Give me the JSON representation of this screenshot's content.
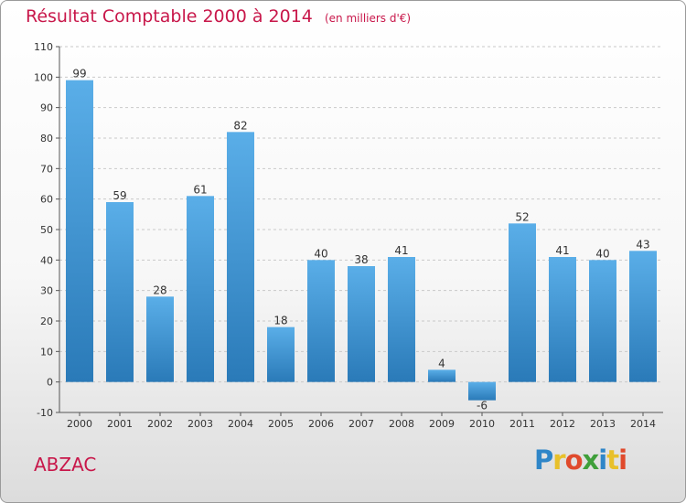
{
  "header": {
    "title": "Résultat Comptable 2000 à 2014",
    "subtitle": "(en milliers d'€)"
  },
  "commune": "ABZAC",
  "logo": {
    "text": "Proxiti",
    "letters": [
      {
        "ch": "P",
        "color": "#2f86c8"
      },
      {
        "ch": "r",
        "color": "#e8c02a"
      },
      {
        "ch": "o",
        "color": "#e04a2c"
      },
      {
        "ch": "x",
        "color": "#3f9f3a"
      },
      {
        "ch": "i",
        "color": "#2f86c8"
      },
      {
        "ch": "t",
        "color": "#e8c02a"
      },
      {
        "ch": "i",
        "color": "#e04a2c"
      }
    ]
  },
  "colors": {
    "accent": "#c8174a",
    "bar_top": "#5aaee8",
    "bar_bottom": "#2a7ab8",
    "grid": "#c9c9c9"
  },
  "chart_data": {
    "type": "bar",
    "title": "Résultat Comptable 2000 à 2014",
    "subtitle": "(en milliers d'€)",
    "categories": [
      "2000",
      "2001",
      "2002",
      "2003",
      "2004",
      "2005",
      "2006",
      "2007",
      "2008",
      "2009",
      "2010",
      "2011",
      "2012",
      "2013",
      "2014"
    ],
    "values": [
      99,
      59,
      28,
      61,
      82,
      18,
      40,
      38,
      41,
      4,
      -6,
      52,
      41,
      40,
      43
    ],
    "ylim": [
      -10,
      110
    ],
    "yticks": [
      -10,
      0,
      10,
      20,
      30,
      40,
      50,
      60,
      70,
      80,
      90,
      100,
      110
    ],
    "grid": true,
    "xlabel": "",
    "ylabel": ""
  }
}
